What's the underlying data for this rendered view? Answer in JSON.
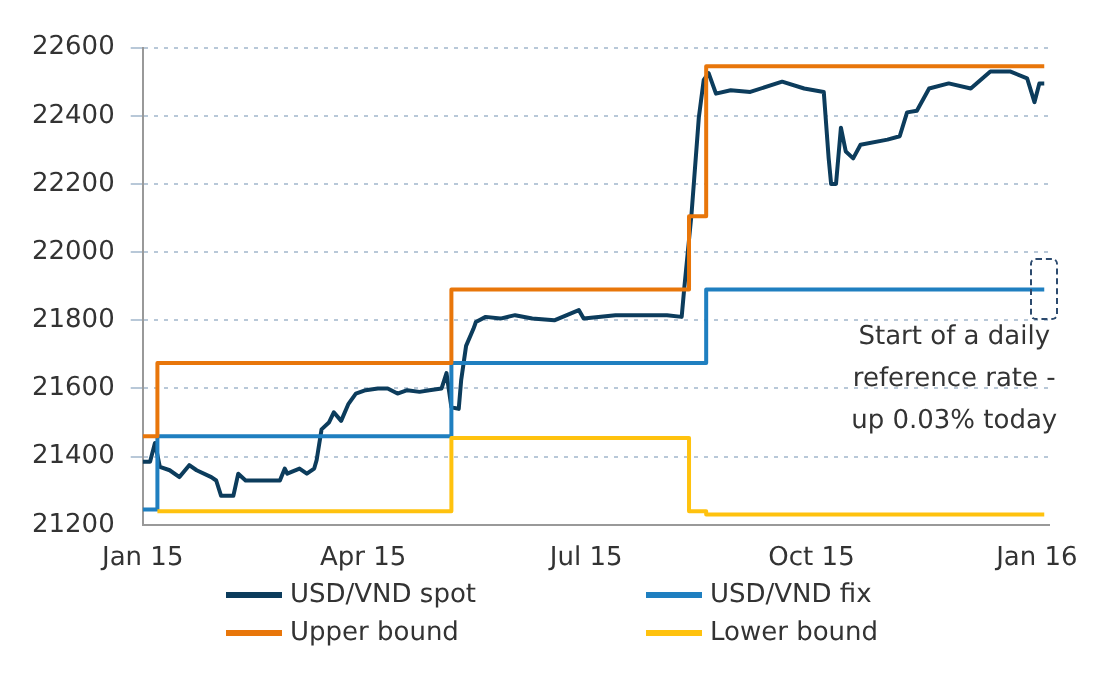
{
  "chart_data": {
    "type": "line",
    "xlim": [
      "2015-01-01",
      "2016-01-06"
    ],
    "xticks": [
      {
        "value": "2015-01-01",
        "label": "Jan 15"
      },
      {
        "value": "2015-04-01",
        "label": "Apr 15"
      },
      {
        "value": "2015-07-01",
        "label": "Jul 15"
      },
      {
        "value": "2015-10-01",
        "label": "Oct 15"
      },
      {
        "value": "2016-01-01",
        "label": "Jan 16"
      }
    ],
    "ylim": [
      21200,
      22600
    ],
    "yticks": [
      21200,
      21400,
      21600,
      21800,
      22000,
      22200,
      22400,
      22600
    ],
    "grid": "y",
    "legend": "bottom",
    "marker": "none",
    "series": [
      {
        "name": "USD/VND spot",
        "color": "#0c3c5c",
        "x": [
          "2015-01-01",
          "2015-01-04",
          "2015-01-06",
          "2015-01-08",
          "2015-01-12",
          "2015-01-16",
          "2015-01-20",
          "2015-01-23",
          "2015-01-29",
          "2015-01-31",
          "2015-02-02",
          "2015-02-07",
          "2015-02-09",
          "2015-02-12",
          "2015-02-19",
          "2015-02-26",
          "2015-02-28",
          "2015-03-01",
          "2015-03-06",
          "2015-03-09",
          "2015-03-12",
          "2015-03-13",
          "2015-03-15",
          "2015-03-18",
          "2015-03-20",
          "2015-03-23",
          "2015-03-26",
          "2015-03-29",
          "2015-04-02",
          "2015-04-07",
          "2015-04-11",
          "2015-04-15",
          "2015-04-19",
          "2015-04-24",
          "2015-04-28",
          "2015-05-03",
          "2015-05-05",
          "2015-05-07",
          "2015-05-10",
          "2015-05-11",
          "2015-05-13",
          "2015-05-16",
          "2015-05-17",
          "2015-05-21",
          "2015-05-27",
          "2015-06-02",
          "2015-06-09",
          "2015-06-18",
          "2015-06-28",
          "2015-06-30",
          "2015-07-13",
          "2015-08-03",
          "2015-08-09",
          "2015-08-10",
          "2015-08-13",
          "2015-08-16",
          "2015-08-18",
          "2015-08-20",
          "2015-08-23",
          "2015-08-29",
          "2015-09-06",
          "2015-09-19",
          "2015-09-28",
          "2015-10-06",
          "2015-10-08",
          "2015-10-09",
          "2015-10-11",
          "2015-10-13",
          "2015-10-15",
          "2015-10-18",
          "2015-10-21",
          "2015-11-01",
          "2015-11-06",
          "2015-11-09",
          "2015-11-13",
          "2015-11-18",
          "2015-11-26",
          "2015-12-05",
          "2015-12-13",
          "2015-12-17",
          "2015-12-21",
          "2015-12-28",
          "2015-12-31",
          "2016-01-02",
          "2016-01-04"
        ],
        "values": [
          21385,
          21385,
          21440,
          21370,
          21360,
          21340,
          21375,
          21360,
          21340,
          21330,
          21285,
          21285,
          21350,
          21330,
          21330,
          21330,
          21365,
          21350,
          21365,
          21350,
          21365,
          21390,
          21480,
          21500,
          21530,
          21505,
          21555,
          21585,
          21595,
          21600,
          21600,
          21585,
          21595,
          21590,
          21595,
          21600,
          21645,
          21545,
          21540,
          21625,
          21725,
          21775,
          21795,
          21810,
          21805,
          21815,
          21805,
          21800,
          21830,
          21805,
          21815,
          21815,
          21810,
          21890,
          22110,
          22395,
          22505,
          22525,
          22465,
          22475,
          22470,
          22500,
          22480,
          22470,
          22275,
          22200,
          22200,
          22365,
          22295,
          22275,
          22315,
          22330,
          22340,
          22410,
          22415,
          22480,
          22495,
          22480,
          22530,
          22530,
          22530,
          22510,
          22440,
          22495,
          22495
        ]
      },
      {
        "name": "USD/VND fix",
        "color": "#1f7fc0",
        "type": "step",
        "x": [
          "2015-01-01",
          "2015-01-07",
          "2015-05-07",
          "2015-08-19",
          "2016-01-04"
        ],
        "values": [
          21245,
          21460,
          21675,
          21890,
          21890
        ]
      },
      {
        "name": "Upper bound",
        "color": "#e8760a",
        "type": "step",
        "x": [
          "2015-01-01",
          "2015-01-07",
          "2015-05-07",
          "2015-08-12",
          "2015-08-19",
          "2016-01-04"
        ],
        "values": [
          21460,
          21675,
          21890,
          22105,
          22545,
          22545
        ]
      },
      {
        "name": "Lower bound",
        "color": "#ffc20e",
        "type": "step",
        "x": [
          "2015-01-07",
          "2015-05-07",
          "2015-08-12",
          "2015-08-19",
          "2016-01-04"
        ],
        "values": [
          21240,
          21455,
          21240,
          21230,
          21230
        ]
      }
    ],
    "annotations": [
      {
        "text": "Start of a daily reference rate - up 0.03% today",
        "x": "2016-01-04",
        "y": 21890
      }
    ]
  }
}
